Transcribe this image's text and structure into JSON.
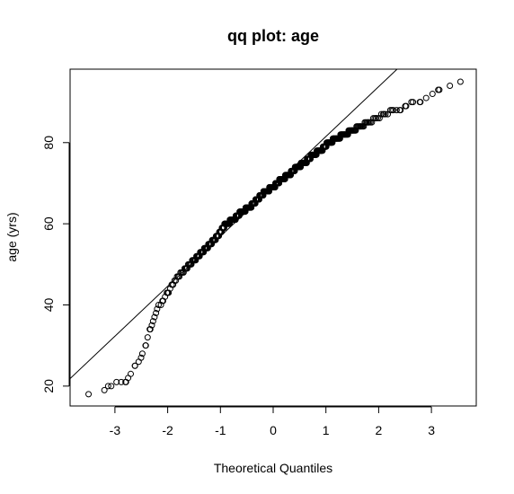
{
  "chart_data": {
    "type": "scatter",
    "title": "qq plot: age",
    "xlabel": "Theoretical Quantiles",
    "ylabel": "age (yrs)",
    "xlim": [
      -3.85,
      3.85
    ],
    "ylim": [
      15.1,
      98.1
    ],
    "x_ticks": [
      -3,
      -2,
      -1,
      0,
      1,
      2,
      3
    ],
    "y_ticks": [
      20,
      40,
      60,
      80
    ],
    "x_tick_labels": [
      "-3",
      "-2",
      "-1",
      "0",
      "1",
      "2",
      "3"
    ],
    "y_tick_labels": [
      "20",
      "40",
      "60",
      "80"
    ],
    "grid": false,
    "legend": "none",
    "reference_line": {
      "intercept": 69.2,
      "slope": 12.3
    },
    "marker_color": "#000000",
    "sample_size": 570,
    "points": {
      "x": [
        -3.5,
        -3.2,
        -3.07,
        -2.97,
        -2.88,
        -2.8,
        -2.75,
        -2.7,
        -2.62,
        -2.55,
        -2.48,
        -2.42,
        -2.38,
        -2.33,
        -2.3,
        -2.25,
        -2.2,
        -2.1,
        -2.0,
        -1.9,
        -1.8,
        -1.65,
        -1.5,
        -1.35,
        -1.2,
        -1.05,
        -0.9,
        -0.75,
        -0.6,
        -0.45,
        -0.3,
        -0.15,
        0.0,
        0.15,
        0.3,
        0.45,
        0.6,
        0.75,
        0.9,
        1.05,
        1.2,
        1.35,
        1.5,
        1.65,
        1.8,
        1.95,
        2.1,
        2.25,
        2.4,
        2.52,
        2.65,
        2.78,
        2.9,
        3.02,
        3.15,
        3.35,
        3.55
      ],
      "y": [
        18,
        19,
        20,
        21,
        21,
        21,
        22,
        23,
        25,
        26,
        28,
        30,
        32,
        34,
        35,
        37,
        39,
        41,
        43,
        45,
        47,
        49,
        51,
        53,
        55,
        57,
        60,
        61,
        63,
        64,
        66,
        68,
        69,
        71,
        72,
        74,
        75,
        77,
        78,
        80,
        81,
        82,
        83,
        84,
        85,
        86,
        87,
        88,
        88,
        89,
        90,
        90,
        91,
        92,
        93,
        94,
        95
      ]
    }
  }
}
